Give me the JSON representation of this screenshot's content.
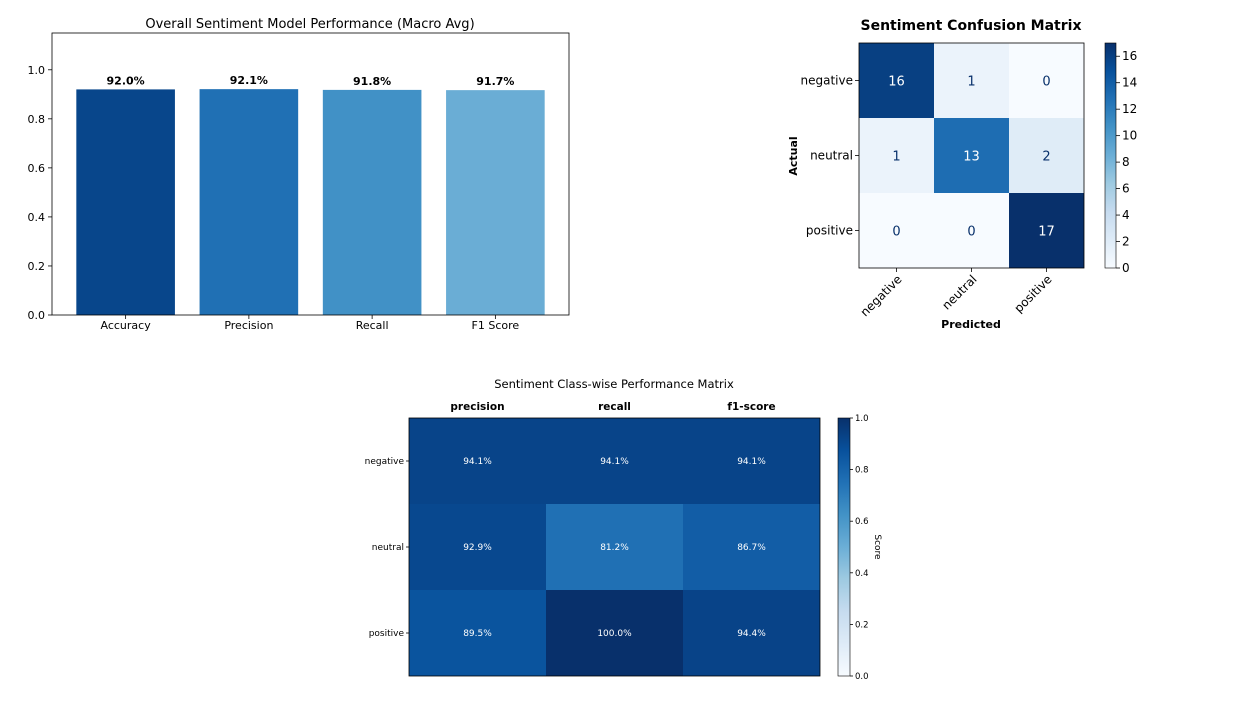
{
  "chart_data": [
    {
      "type": "bar",
      "title": "Overall Sentiment Model Performance (Macro Avg)",
      "categories": [
        "Accuracy",
        "Precision",
        "Recall",
        "F1 Score"
      ],
      "values": [
        0.92,
        0.921,
        0.918,
        0.917
      ],
      "value_labels": [
        "92.0%",
        "92.1%",
        "91.8%",
        "91.7%"
      ],
      "colors": [
        "#08468b",
        "#2070b4",
        "#4191c6",
        "#6aadd5"
      ],
      "ylim": [
        0,
        1.15
      ],
      "yticks": [
        0.0,
        0.2,
        0.4,
        0.6,
        0.8,
        1.0
      ],
      "ytick_labels": [
        "0.0",
        "0.2",
        "0.4",
        "0.6",
        "0.8",
        "1.0"
      ],
      "grid": false
    },
    {
      "type": "heatmap",
      "title": "Sentiment Confusion Matrix",
      "xlabel": "Predicted",
      "ylabel": "Actual",
      "rows": [
        "negative",
        "neutral",
        "positive"
      ],
      "cols": [
        "negative",
        "neutral",
        "positive"
      ],
      "values": [
        [
          16,
          1,
          0
        ],
        [
          1,
          13,
          2
        ],
        [
          0,
          0,
          17
        ]
      ],
      "colorbar": {
        "min": 0,
        "max": 17,
        "ticks": [
          0,
          2,
          4,
          6,
          8,
          10,
          12,
          14,
          16
        ]
      },
      "colormap": "Blues"
    },
    {
      "type": "heatmap",
      "title": "Sentiment Class-wise Performance Matrix",
      "rows": [
        "negative",
        "neutral",
        "positive"
      ],
      "cols": [
        "precision",
        "recall",
        "f1-score"
      ],
      "values": [
        [
          0.941,
          0.941,
          0.941
        ],
        [
          0.929,
          0.812,
          0.867
        ],
        [
          0.895,
          1.0,
          0.944
        ]
      ],
      "cell_labels": [
        [
          "94.1%",
          "94.1%",
          "94.1%"
        ],
        [
          "92.9%",
          "81.2%",
          "86.7%"
        ],
        [
          "89.5%",
          "100.0%",
          "94.4%"
        ]
      ],
      "colorbar": {
        "label": "Score",
        "min": 0,
        "max": 1,
        "ticks": [
          0.0,
          0.2,
          0.4,
          0.6,
          0.8,
          1.0
        ],
        "tick_labels": [
          "0.0",
          "0.2",
          "0.4",
          "0.6",
          "0.8",
          "1.0"
        ]
      },
      "colormap": "Blues"
    }
  ]
}
